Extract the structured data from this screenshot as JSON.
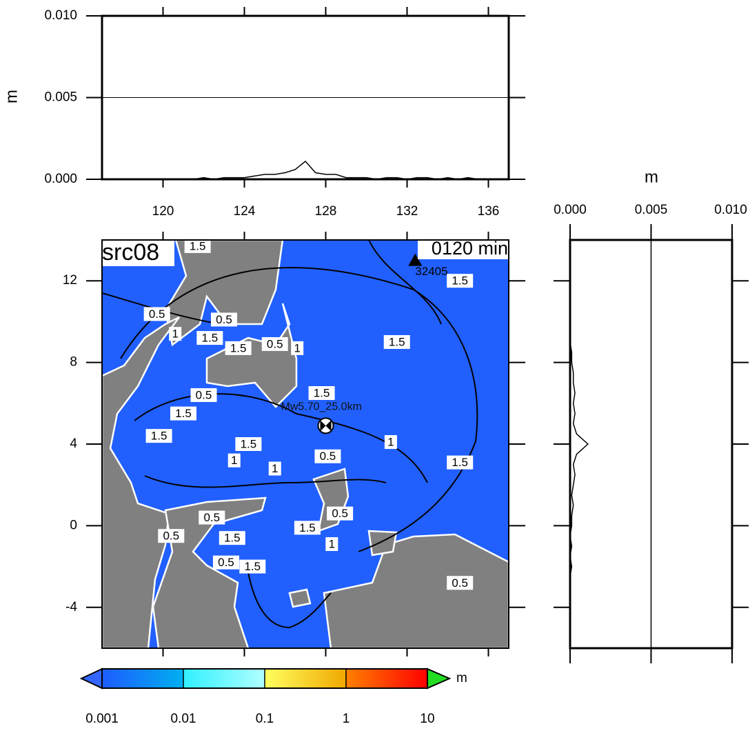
{
  "chart_data": [
    {
      "type": "line",
      "ylabel": "m",
      "xlim": [
        117,
        137
      ],
      "xticks": [
        120,
        124,
        128,
        132,
        136
      ],
      "ylim": [
        0,
        0.01
      ],
      "yticks": [
        {
          "value": 0,
          "label": "0.000"
        },
        {
          "value": 0.005,
          "label": "0.005"
        },
        {
          "value": 0.01,
          "label": "0.010"
        }
      ],
      "grid": true,
      "color": "#000000",
      "x": [
        117,
        117.5,
        118,
        118.5,
        119,
        119.5,
        120,
        120.5,
        121,
        121.5,
        122,
        122.5,
        123,
        123.5,
        124,
        124.5,
        125,
        125.5,
        126,
        126.5,
        127,
        127.5,
        128,
        128.5,
        129,
        129.5,
        130,
        130.5,
        131,
        131.5,
        132,
        132.5,
        133,
        133.5,
        134,
        134.5,
        135,
        135.5,
        136,
        136.5,
        137
      ],
      "values": [
        0,
        0,
        0,
        0,
        0,
        0,
        0,
        0,
        0,
        0,
        0.0001,
        0,
        0.0001,
        0.0001,
        0.0001,
        0.0002,
        0.0003,
        0.0003,
        0.0004,
        0.0006,
        0.0011,
        0.0004,
        0.0003,
        0.0003,
        0.0001,
        0.0001,
        0.0001,
        0,
        0.0001,
        0.0001,
        0,
        0.0001,
        0.0001,
        0,
        0.0001,
        0,
        0.0001,
        0,
        0,
        0,
        0
      ]
    },
    {
      "type": "profile",
      "xlabel": "m",
      "xlim": [
        0,
        0.01
      ],
      "xticks": [
        {
          "value": 0,
          "label": "0.000"
        },
        {
          "value": 0.005,
          "label": "0.005"
        },
        {
          "value": 0.01,
          "label": "0.010"
        }
      ],
      "ylim": [
        -6,
        14
      ],
      "grid": true,
      "color": "#000000",
      "y": [
        -6,
        -5.5,
        -5,
        -4.5,
        -4,
        -3.5,
        -3,
        -2.5,
        -2,
        -1.5,
        -1,
        -0.5,
        0,
        0.5,
        1,
        1.5,
        2,
        2.5,
        3,
        3.5,
        4,
        4.5,
        5,
        5.5,
        6,
        6.5,
        7,
        7.5,
        8,
        8.5,
        9,
        9.5,
        10,
        10.5,
        11,
        11.5,
        12,
        12.5,
        13,
        13.5,
        14
      ],
      "values": [
        0,
        0,
        0,
        0,
        0,
        0,
        0,
        0,
        0.0001,
        0,
        0.0001,
        0,
        0.0001,
        0.0001,
        0.0002,
        0.0001,
        0.0002,
        0.0003,
        0.0002,
        0.0004,
        0.0011,
        0.0004,
        0.0002,
        0.0003,
        0.0002,
        0.0003,
        0.0002,
        0.0002,
        0.0001,
        0.0001,
        0,
        0,
        0,
        0,
        0,
        0,
        0,
        0,
        0,
        0,
        0
      ]
    },
    {
      "type": "map",
      "title": "src08",
      "time_label": "0120 min",
      "xlim": [
        117,
        137
      ],
      "ylim": [
        -6,
        14
      ],
      "yticks": [
        -4,
        0,
        4,
        8,
        12
      ],
      "ocean_color": "#2160ff",
      "land_color": "#808080",
      "station": {
        "name": "32405",
        "lon": 132.4,
        "lat": 13.0
      },
      "epicenter": {
        "label": "Mw5.70_25.0km",
        "lon": 128.0,
        "lat": 4.9
      },
      "contour_labels": [
        {
          "text": "0.5",
          "lon": 119.7,
          "lat": 10.37
        },
        {
          "text": "1",
          "lon": 120.6,
          "lat": 9.4
        },
        {
          "text": "1.5",
          "lon": 122.3,
          "lat": 9.2
        },
        {
          "text": "0.5",
          "lon": 123.0,
          "lat": 10.1
        },
        {
          "text": "1.5",
          "lon": 123.7,
          "lat": 8.7
        },
        {
          "text": "0.5",
          "lon": 125.5,
          "lat": 8.9
        },
        {
          "text": "1",
          "lon": 126.6,
          "lat": 8.7
        },
        {
          "text": "1.5",
          "lon": 131.5,
          "lat": 9.0
        },
        {
          "text": "1.5",
          "lon": 134.6,
          "lat": 12.0
        },
        {
          "text": "0.5",
          "lon": 122.0,
          "lat": 6.4
        },
        {
          "text": "1.5",
          "lon": 121.0,
          "lat": 5.5
        },
        {
          "text": "1.5",
          "lon": 119.8,
          "lat": 4.4
        },
        {
          "text": "1.5",
          "lon": 124.2,
          "lat": 4.0
        },
        {
          "text": "1",
          "lon": 123.5,
          "lat": 3.2
        },
        {
          "text": "1",
          "lon": 125.5,
          "lat": 2.8
        },
        {
          "text": "1.5",
          "lon": 127.8,
          "lat": 6.5
        },
        {
          "text": "0.5",
          "lon": 128.1,
          "lat": 3.4
        },
        {
          "text": "1",
          "lon": 131.2,
          "lat": 4.1
        },
        {
          "text": "1.5",
          "lon": 134.6,
          "lat": 3.1
        },
        {
          "text": "0.5",
          "lon": 122.4,
          "lat": 0.4
        },
        {
          "text": "0.5",
          "lon": 120.4,
          "lat": -0.5
        },
        {
          "text": "1.5",
          "lon": 123.4,
          "lat": -0.6
        },
        {
          "text": "0.5",
          "lon": 123.1,
          "lat": -1.8
        },
        {
          "text": "1.5",
          "lon": 124.4,
          "lat": -2.0
        },
        {
          "text": "1.5",
          "lon": 127.1,
          "lat": -0.1
        },
        {
          "text": "1",
          "lon": 128.3,
          "lat": -0.9
        },
        {
          "text": "0.5",
          "lon": 128.7,
          "lat": 0.6
        },
        {
          "text": "0.5",
          "lon": 134.6,
          "lat": -2.8
        },
        {
          "text": "1.5",
          "lon": 121.7,
          "lat": 13.7
        }
      ]
    },
    {
      "type": "colorbar",
      "unit": "m",
      "log": true,
      "ticks": [
        0.001,
        0.01,
        0.1,
        1,
        10
      ],
      "segment_colors": [
        [
          "#1e5cff",
          "#00b0f0"
        ],
        [
          "#30f0ff",
          "#b0ffff"
        ],
        [
          "#ffff60",
          "#f0a800"
        ],
        [
          "#ff8000",
          "#ff0000"
        ]
      ],
      "under_color": "#3366ff",
      "over_color": "#22dd22"
    }
  ]
}
